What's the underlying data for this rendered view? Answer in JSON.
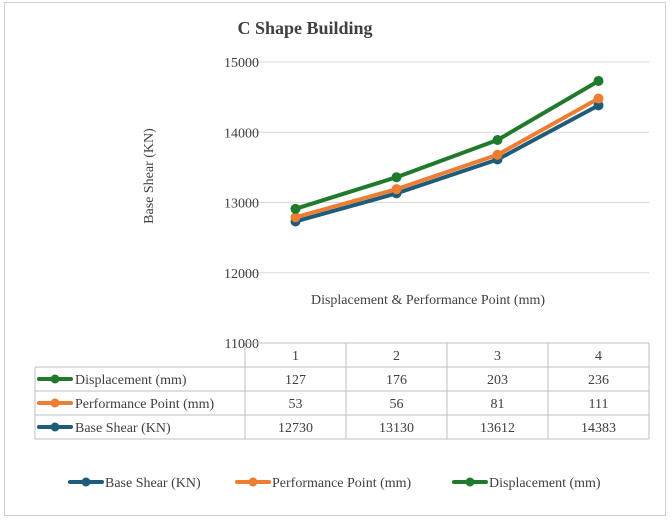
{
  "chart_data": {
    "type": "line",
    "title": "C Shape Building",
    "xlabel": "Displacement & Performance Point (mm)",
    "ylabel": "Base Shear (KN)",
    "ylim": [
      11000,
      15000
    ],
    "yticks": [
      11000,
      12000,
      13000,
      14000,
      15000
    ],
    "categories": [
      "1",
      "2",
      "3",
      "4"
    ],
    "grid": true,
    "legend": "bottom",
    "series": [
      {
        "name": "Base Shear (KN)",
        "color": "#1f5c7a",
        "values": [
          12730,
          13130,
          13612,
          14383
        ],
        "table_values": [
          "12730",
          "13130",
          "13612",
          "14383"
        ]
      },
      {
        "name": "Performance Point (mm)",
        "color": "#ed7d31",
        "values": [
          12790,
          13190,
          13680,
          14480
        ],
        "table_values": [
          "53",
          "56",
          "81",
          "111"
        ]
      },
      {
        "name": "Displacement (mm)",
        "color": "#217a2c",
        "values": [
          12910,
          13360,
          13890,
          14730
        ],
        "table_values": [
          "127",
          "176",
          "203",
          "236"
        ]
      }
    ],
    "table_row_order": [
      "Displacement (mm)",
      "Performance Point (mm)",
      "Base Shear (KN)"
    ],
    "legend_order": [
      "Base Shear (KN)",
      "Performance Point (mm)",
      "Displacement (mm)"
    ]
  }
}
